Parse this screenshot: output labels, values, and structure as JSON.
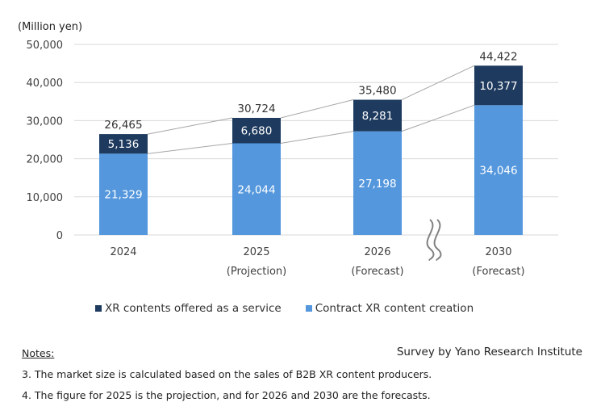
{
  "chart_data": {
    "type": "bar",
    "stacked": true,
    "unit_label": "(Million yen)",
    "categories": [
      "2024",
      "2025",
      "2026",
      "2030"
    ],
    "category_sublabels": [
      "",
      "(Projection)",
      "(Forecast)",
      "(Forecast)"
    ],
    "series": [
      {
        "name": "Contract XR content creation",
        "values": [
          21329,
          24044,
          27198,
          34046
        ],
        "color": "#5497dd"
      },
      {
        "name": "XR contents offered as a service",
        "values": [
          5136,
          6680,
          8281,
          10377
        ],
        "color": "#1e3a5e"
      }
    ],
    "segment_labels": [
      [
        "21,329",
        "24,044",
        "27,198",
        "34,046"
      ],
      [
        "5,136",
        "6,680",
        "8,281",
        "10,377"
      ]
    ],
    "totals": [
      "26,465",
      "30,724",
      "35,480",
      "44,422"
    ],
    "ylim": [
      0,
      50000
    ],
    "yticks": [
      "0",
      "10,000",
      "20,000",
      "30,000",
      "40,000",
      "50,000"
    ],
    "grid": true,
    "axis_break_before": "2030",
    "legend_position": "bottom",
    "legend": [
      "XR contents offered as a service",
      "Contract XR content creation"
    ]
  },
  "source": "Survey by Yano Research Institute",
  "notes": {
    "title": "Notes:",
    "items": [
      "3. The market size is calculated based on the sales of B2B XR content producers.",
      "4. The figure for 2025 is the projection, and for 2026 and 2030 are the forecasts."
    ]
  }
}
